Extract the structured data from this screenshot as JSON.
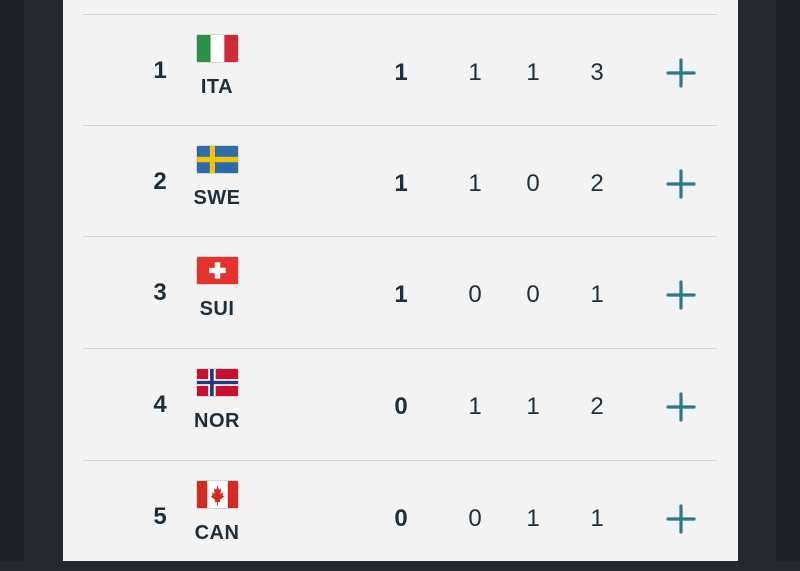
{
  "accent_color": "#2a7c80",
  "medal_table": {
    "rows": [
      {
        "rank": "1",
        "code": "ITA",
        "flag": "italy-flag-icon",
        "gold": "1",
        "silver": "1",
        "bronze": "1",
        "total": "3"
      },
      {
        "rank": "2",
        "code": "SWE",
        "flag": "sweden-flag-icon",
        "gold": "1",
        "silver": "1",
        "bronze": "0",
        "total": "2"
      },
      {
        "rank": "3",
        "code": "SUI",
        "flag": "switzerland-flag-icon",
        "gold": "1",
        "silver": "0",
        "bronze": "0",
        "total": "1"
      },
      {
        "rank": "4",
        "code": "NOR",
        "flag": "norway-flag-icon",
        "gold": "0",
        "silver": "1",
        "bronze": "1",
        "total": "2"
      },
      {
        "rank": "5",
        "code": "CAN",
        "flag": "canada-flag-icon",
        "gold": "0",
        "silver": "0",
        "bronze": "1",
        "total": "1"
      }
    ]
  }
}
